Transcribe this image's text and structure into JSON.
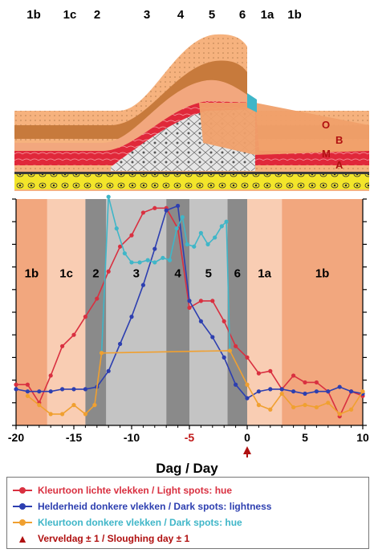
{
  "top_stages": [
    "1b",
    "1c",
    "2",
    "3",
    "4",
    "5",
    "6",
    "1a",
    "1b"
  ],
  "layer_labels": [
    "O",
    "B",
    "M",
    "A"
  ],
  "chart_data": {
    "type": "line",
    "xlim": [
      -20,
      10
    ],
    "ylim": [
      0,
      10
    ],
    "xticks": [
      "-20",
      "-15",
      "-10",
      "-5",
      "0",
      "5",
      "10"
    ],
    "xlabel": "Dag  /  Day",
    "ylabel": "",
    "stage_bands": [
      {
        "label": "1b",
        "x0": -20,
        "x1": -17.3,
        "color": "#f2a77e"
      },
      {
        "label": "1c",
        "x0": -17.3,
        "x1": -14,
        "color": "#f9cdb3"
      },
      {
        "label": "2",
        "x0": -14,
        "x1": -12.2,
        "color": "#8a8a8a"
      },
      {
        "label": "3",
        "x0": -12.2,
        "x1": -7,
        "color": "#c4c4c4"
      },
      {
        "label": "4",
        "x0": -7,
        "x1": -5,
        "color": "#8a8a8a"
      },
      {
        "label": "5",
        "x0": -5,
        "x1": -1.7,
        "color": "#c4c4c4"
      },
      {
        "label": "6",
        "x0": -1.7,
        "x1": 0,
        "color": "#8a8a8a"
      },
      {
        "label": "1a",
        "x0": 0,
        "x1": 3,
        "color": "#f9cdb3"
      },
      {
        "label": "1b",
        "x0": 3,
        "x1": 10,
        "color": "#f2a77e"
      }
    ],
    "series": [
      {
        "name": "Kleurtoon lichte vlekken  /  Light spots: hue",
        "color": "#d93040",
        "marker": true,
        "x": [
          -20,
          -19,
          -18,
          -17,
          -16,
          -15,
          -14,
          -13,
          -12,
          -11,
          -10,
          -9,
          -8,
          -7,
          -6,
          -5,
          -4,
          -3,
          -2,
          -1,
          0,
          1,
          2,
          3,
          4,
          5,
          6,
          7,
          8,
          9,
          10
        ],
        "y": [
          1.8,
          1.8,
          1.0,
          2.2,
          3.5,
          4.0,
          4.8,
          5.6,
          6.8,
          7.9,
          8.4,
          9.4,
          9.6,
          9.6,
          8.7,
          5.2,
          5.5,
          5.5,
          4.6,
          3.5,
          3.0,
          2.3,
          2.4,
          1.6,
          2.2,
          1.9,
          1.9,
          1.5,
          0.4,
          1.5,
          1.3
        ]
      },
      {
        "name": "Helderheid donkere vlekken  /  Dark spots: lightness",
        "color": "#2d3fb0",
        "marker": true,
        "x": [
          -20,
          -19,
          -18,
          -17,
          -16,
          -15,
          -14,
          -13,
          -12,
          -11,
          -10,
          -9,
          -8,
          -7,
          -6,
          -5,
          -4,
          -3,
          -2,
          -1,
          0,
          1,
          2,
          3,
          4,
          5,
          6,
          7,
          8,
          9,
          10
        ],
        "y": [
          1.6,
          1.5,
          1.5,
          1.5,
          1.6,
          1.6,
          1.6,
          1.7,
          2.4,
          3.6,
          4.8,
          6.2,
          7.8,
          9.5,
          9.7,
          5.5,
          4.6,
          3.9,
          3.0,
          1.8,
          1.2,
          1.5,
          1.6,
          1.6,
          1.5,
          1.4,
          1.5,
          1.5,
          1.7,
          1.5,
          1.4
        ]
      },
      {
        "name": "Kleurtoon donkere vlekken  /  Dark spots: hue",
        "color": "#3fb6c8",
        "marker": true,
        "x": [
          -12.6,
          -12,
          -11.3,
          -10.6,
          -10,
          -9.3,
          -8.6,
          -8,
          -7.3,
          -6.7,
          -6.1,
          -5.6,
          -5.2,
          -4.6,
          -4,
          -3.4,
          -2.8,
          -2.2,
          -1.8,
          -1.5
        ],
        "y": [
          3.2,
          10.1,
          8.7,
          7.6,
          7.2,
          7.2,
          7.3,
          7.2,
          7.4,
          7.3,
          8.7,
          9.2,
          8.0,
          7.9,
          8.5,
          8.0,
          8.3,
          8.8,
          9.0,
          3.3
        ]
      },
      {
        "name": "Kleurtoon donkere vlekken  /  Dark spots: hue",
        "color": "#f0a030",
        "marker": true,
        "x": [
          -19,
          -18,
          -17,
          -16,
          -15,
          -14,
          -13.2,
          -12.6,
          -1.5,
          0,
          1,
          2,
          3,
          4,
          5,
          6,
          7,
          8,
          9,
          10
        ],
        "y": [
          1.3,
          0.9,
          0.5,
          0.5,
          0.9,
          0.5,
          0.9,
          3.2,
          3.3,
          1.8,
          0.9,
          0.7,
          1.4,
          0.8,
          0.9,
          0.8,
          1.0,
          0.5,
          0.7,
          1.5
        ]
      }
    ],
    "legend": {
      "placement": "bottom",
      "entries": [
        {
          "text": "Kleurtoon lichte vlekken  /  Light spots: hue",
          "color": "#d93040",
          "type": "line"
        },
        {
          "text": "Helderheid donkere vlekken  /  Dark spots: lightness",
          "color": "#2d3fb0",
          "type": "line"
        },
        {
          "text": "Kleurtoon donkere vlekken  /  Dark spots: hue",
          "color": "#3fb6c8",
          "type": "line"
        },
        {
          "text": "Verveldag ± 1  /  Sloughing day ± 1",
          "color": "#b01010",
          "type": "arrow"
        }
      ]
    }
  }
}
